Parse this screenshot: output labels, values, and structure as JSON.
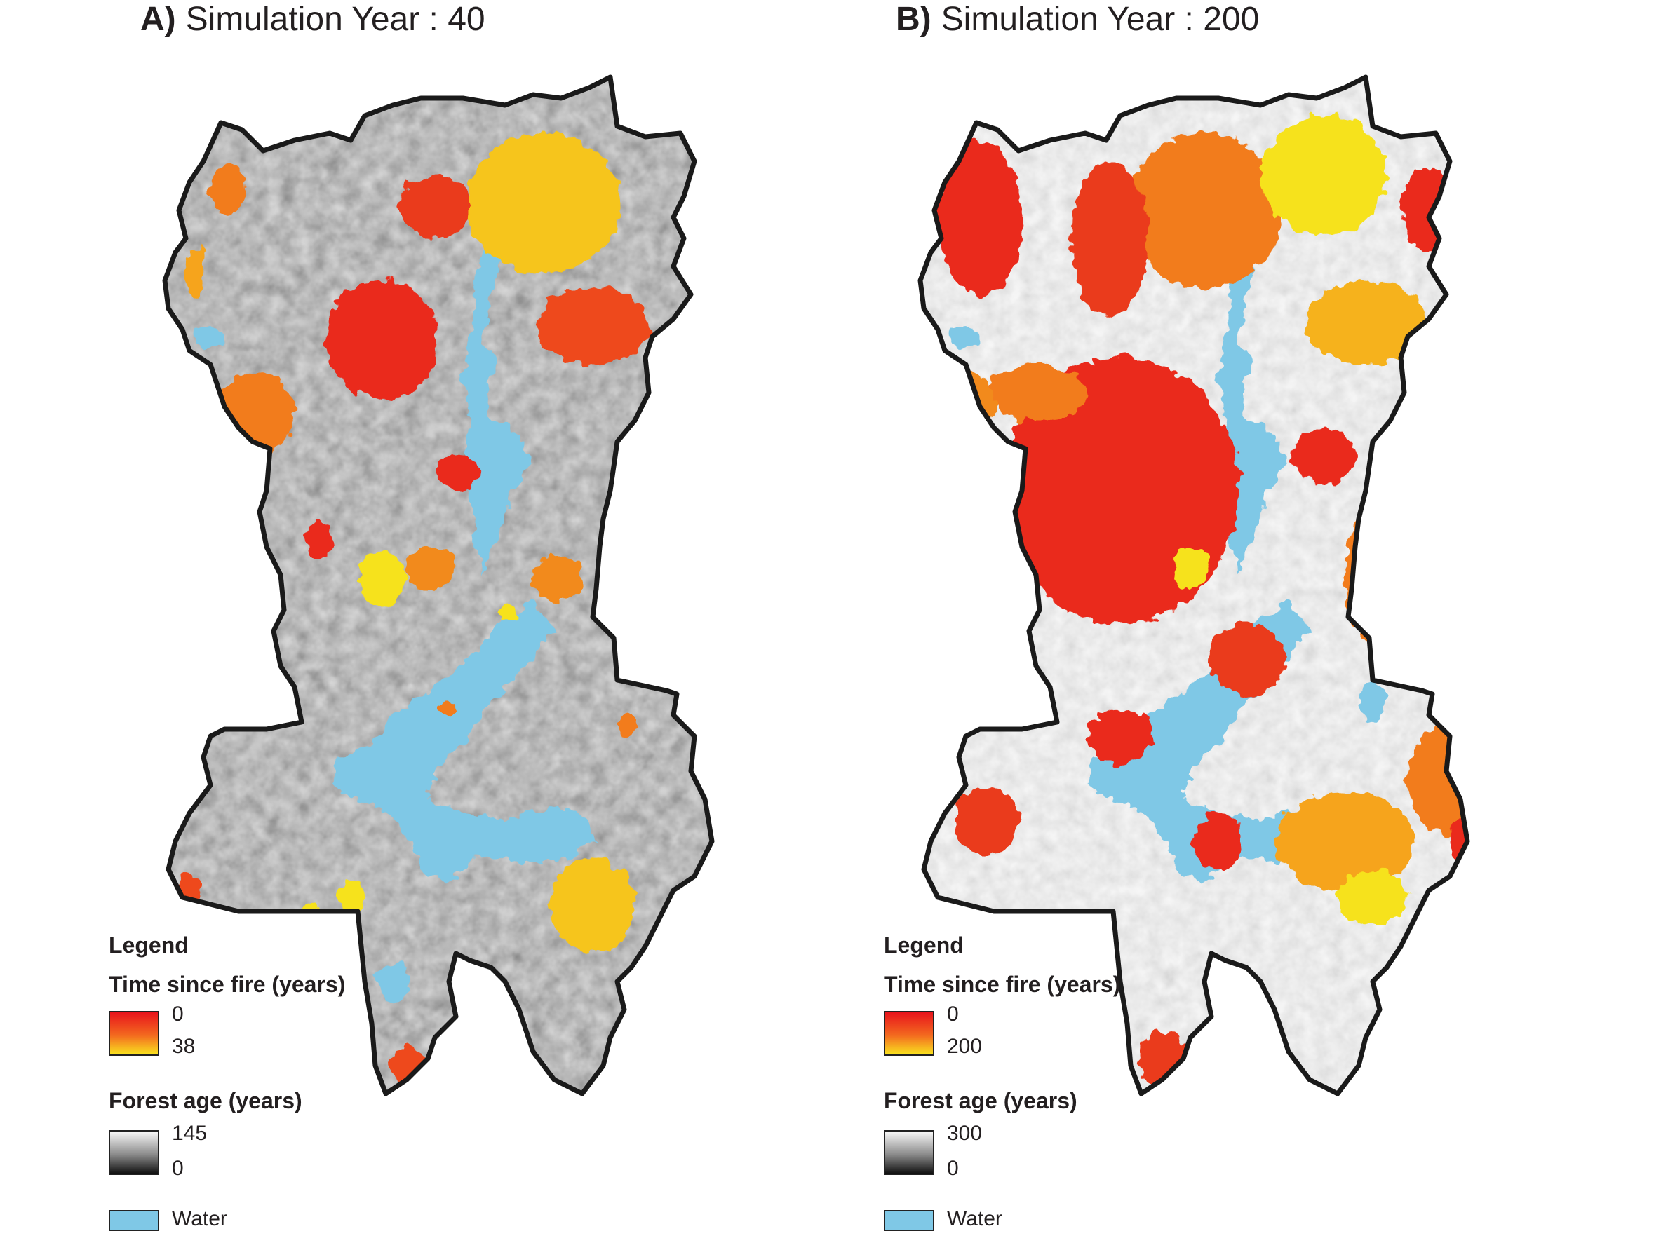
{
  "colors": {
    "fire_young": "#e8141c",
    "fire_mid": "#f36a1f",
    "fire_old": "#f9e21f",
    "water": "#7fc8e6",
    "forest_old": "#f8f8f8",
    "forest_young": "#111111",
    "outline": "#1a1a1a"
  },
  "panels": [
    {
      "letter": "A)",
      "title": "Simulation Year : 40",
      "legend": {
        "heading": "Legend",
        "fire_label": "Time since fire (years)",
        "fire_min": "0",
        "fire_max": "38",
        "age_label": "Forest age (years)",
        "age_max": "145",
        "age_min": "0",
        "water_label": "Water"
      }
    },
    {
      "letter": "B)",
      "title": "Simulation Year : 200",
      "legend": {
        "heading": "Legend",
        "fire_label": "Time since fire (years)",
        "fire_min": "0",
        "fire_max": "200",
        "age_label": "Forest age (years)",
        "age_max": "300",
        "age_min": "0",
        "water_label": "Water"
      }
    }
  ]
}
